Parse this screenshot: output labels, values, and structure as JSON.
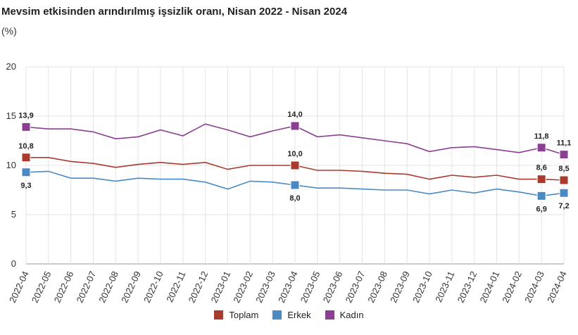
{
  "chart_data": {
    "type": "line",
    "title": "Mevsim etkisinden arındırılmış işsizlik oranı, Nisan 2022 - Nisan 2024",
    "unit": "(%)",
    "ylim": [
      0,
      20
    ],
    "yticks": [
      0,
      5,
      10,
      15,
      20
    ],
    "grid": true,
    "legend_position": "bottom-center",
    "x": [
      "2022-04",
      "2022-05",
      "2022-06",
      "2022-07",
      "2022-08",
      "2022-09",
      "2022-10",
      "2022-11",
      "2022-12",
      "2023-01",
      "2023-02",
      "2023-03",
      "2023-04",
      "2023-05",
      "2023-06",
      "2023-07",
      "2023-08",
      "2023-09",
      "2023-10",
      "2023-11",
      "2023-12",
      "2024-01",
      "2024-02",
      "2024-03",
      "2024-04"
    ],
    "series": [
      {
        "name": "Toplam",
        "color": "#a83a2e",
        "values": [
          10.8,
          10.8,
          10.4,
          10.2,
          9.8,
          10.1,
          10.3,
          10.1,
          10.3,
          9.6,
          10.0,
          10.0,
          10.0,
          9.5,
          9.5,
          9.4,
          9.2,
          9.1,
          8.6,
          9.0,
          8.8,
          9.0,
          8.6,
          8.6,
          8.5
        ]
      },
      {
        "name": "Erkek",
        "color": "#4a8ac4",
        "values": [
          9.3,
          9.4,
          8.7,
          8.7,
          8.4,
          8.7,
          8.6,
          8.6,
          8.3,
          7.6,
          8.4,
          8.3,
          8.0,
          7.7,
          7.7,
          7.6,
          7.5,
          7.5,
          7.1,
          7.5,
          7.2,
          7.6,
          7.3,
          6.9,
          7.2
        ]
      },
      {
        "name": "Kadın",
        "color": "#8b3f92",
        "values": [
          13.9,
          13.7,
          13.7,
          13.4,
          12.7,
          12.9,
          13.6,
          13.0,
          14.2,
          13.6,
          12.9,
          13.5,
          14.0,
          12.9,
          13.1,
          12.8,
          12.5,
          12.2,
          11.4,
          11.8,
          11.9,
          11.6,
          11.3,
          11.8,
          11.1
        ]
      }
    ],
    "data_labels": [
      {
        "series": 0,
        "index": 0,
        "text": "10,8",
        "pos": "above"
      },
      {
        "series": 0,
        "index": 12,
        "text": "10,0",
        "pos": "above"
      },
      {
        "series": 0,
        "index": 23,
        "text": "8,6",
        "pos": "above"
      },
      {
        "series": 0,
        "index": 24,
        "text": "8,5",
        "pos": "above"
      },
      {
        "series": 1,
        "index": 0,
        "text": "9,3",
        "pos": "below"
      },
      {
        "series": 1,
        "index": 12,
        "text": "8,0",
        "pos": "below"
      },
      {
        "series": 1,
        "index": 23,
        "text": "6,9",
        "pos": "below"
      },
      {
        "series": 1,
        "index": 24,
        "text": "7,2",
        "pos": "below"
      },
      {
        "series": 2,
        "index": 0,
        "text": "13,9",
        "pos": "above"
      },
      {
        "series": 2,
        "index": 12,
        "text": "14,0",
        "pos": "above"
      },
      {
        "series": 2,
        "index": 23,
        "text": "11,8",
        "pos": "above"
      },
      {
        "series": 2,
        "index": 24,
        "text": "11,1",
        "pos": "above"
      }
    ]
  }
}
